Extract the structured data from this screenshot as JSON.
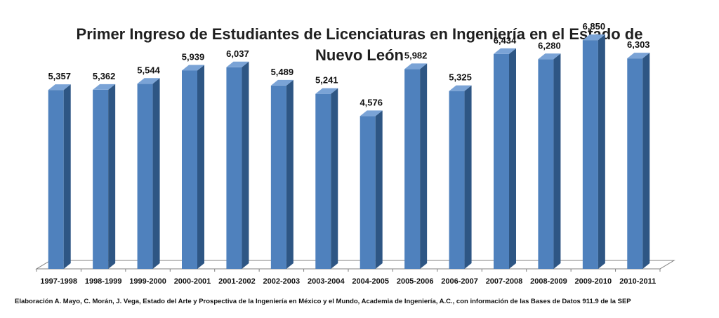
{
  "chart_data": {
    "type": "bar",
    "title_lines": [
      "Primer Ingreso de Estudiantes  de Licenciaturas en Ingeniería en el Estado de",
      "Nuevo León"
    ],
    "categories": [
      "1997-1998",
      "1998-1999",
      "1999-2000",
      "2000-2001",
      "2001-2002",
      "2002-2003",
      "2003-2004",
      "2004-2005",
      "2005-2006",
      "2006-2007",
      "2007-2008",
      "2008-2009",
      "2009-2010",
      "2010-2011"
    ],
    "values": [
      5357,
      5362,
      5544,
      5939,
      6037,
      5489,
      5241,
      4576,
      5982,
      5325,
      6434,
      6280,
      6850,
      6303
    ],
    "value_labels": [
      "5,357",
      "5,362",
      "5,544",
      "5,939",
      "6,037",
      "5,489",
      "5,241",
      "4,576",
      "5,982",
      "5,325",
      "6,434",
      "6,280",
      "6,850",
      "6,303"
    ],
    "xlabel": "",
    "ylabel": "",
    "ylim": [
      0,
      7000
    ],
    "grid": false,
    "legend": "none",
    "style": "3d-column",
    "colors": {
      "bar_front": "#4f81bd",
      "bar_side": "#2e5684",
      "bar_top": "#7aa3d6",
      "floor": "#ffffff",
      "floor_edge": "#808080"
    }
  },
  "source_note": "Elaboración A. Mayo, C. Morán, J. Vega, Estado del Arte y Prospectiva de la Ingeniería en México y el Mundo, Academia de Ingeniería, A.C., con información de las Bases de Datos  911.9  de la SEP"
}
